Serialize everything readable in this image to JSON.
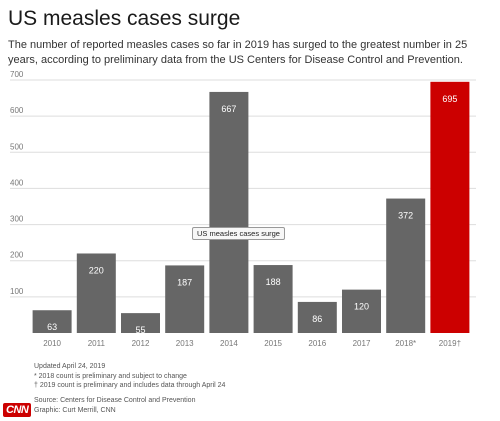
{
  "header": {
    "title": "US measles cases surge",
    "subtitle": "The number of reported measles cases so far in 2019 has surged to the greatest number in 25 years, according to preliminary data from the US Centers for Disease Control and Prevention."
  },
  "tooltip": {
    "text": "US measles cases surge"
  },
  "notes": {
    "updated": "Updated April 24, 2019",
    "note1": "* 2018 count is preliminary and subject to change",
    "note2": "† 2019 count is preliminary and includes data through April 24"
  },
  "source": {
    "source": "Source: Centers for Disease Control and Prevention",
    "graphic": "Graphic: Curt Merrill, CNN"
  },
  "logo": {
    "text": "CNN",
    "color": "#cc0000"
  },
  "colors": {
    "bar": "#666666",
    "highlight": "#cc0000",
    "grid": "#dddddd"
  },
  "chart_data": {
    "type": "bar",
    "categories": [
      "2010",
      "2011",
      "2012",
      "2013",
      "2014",
      "2015",
      "2016",
      "2017",
      "2018*",
      "2019†"
    ],
    "values": [
      63,
      220,
      55,
      187,
      667,
      188,
      86,
      120,
      372,
      695
    ],
    "highlight_index": 9,
    "ylim": [
      0,
      700
    ],
    "yticks": [
      100,
      200,
      300,
      400,
      500,
      600,
      700
    ],
    "grid": true,
    "xlabel": "",
    "ylabel": ""
  }
}
